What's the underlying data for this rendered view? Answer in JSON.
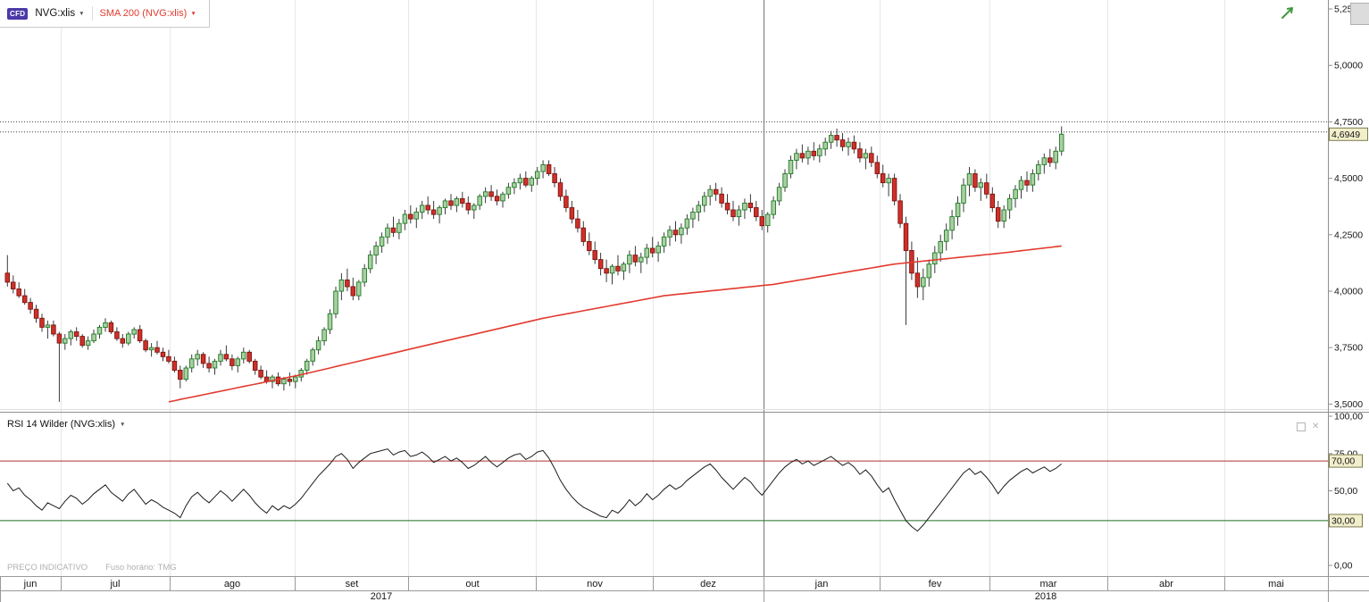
{
  "header": {
    "badge_label": "CFD",
    "symbol_label": "NVG:xlis",
    "sma_label": "SMA 200 (NVG:xlis)"
  },
  "icons": {
    "caret_down": "▼",
    "close": "✕"
  },
  "price_axis": {
    "tick_labels": [
      "5,2500",
      "5,0000",
      "4,7500",
      "4,5000",
      "4,2500",
      "4,0000",
      "3,7500",
      "3,5000"
    ],
    "tick_values": [
      5.25,
      5.0,
      4.75,
      4.5,
      4.25,
      4.0,
      3.75,
      3.5
    ],
    "last_price_label": "4,6949",
    "last_price": 4.6949,
    "level_lines": [
      4.75,
      4.705
    ]
  },
  "rsi_panel": {
    "title": "RSI 14 Wilder (NVG:xlis)",
    "tick_labels": [
      "100,00",
      "75,00",
      "50,00",
      "0,00"
    ],
    "tick_values": [
      100,
      75,
      50,
      0
    ],
    "overbought_label": "70,00",
    "oversold_label": "30,00",
    "overbought": 70,
    "oversold": 30
  },
  "footer": {
    "note": "PREÇO INDICATIVO",
    "timezone": "Fuso horário: TMG"
  },
  "colors": {
    "badge_bg": "#4a3aa8",
    "up_fill": "#a9cfa3",
    "up_stroke": "#1f7a24",
    "down_fill": "#cd312a",
    "down_stroke": "#7e130f",
    "sma": "#e23a2e",
    "rsi_line": "#1c1c1c",
    "overbought_line": "#b03030",
    "oversold_line": "#1d6b1d",
    "last_price_bg": "#f1eecb"
  },
  "chart_data": {
    "type": "candlestick",
    "months": [
      "jun",
      "jul",
      "ago",
      "set",
      "out",
      "nov",
      "dez",
      "jan",
      "fev",
      "mar",
      "abr",
      "mai"
    ],
    "years": [
      "2017",
      "2018"
    ],
    "price_range": [
      3.45,
      5.27
    ],
    "rsi_range": [
      0,
      100
    ],
    "ohlc": [
      [
        4.08,
        4.16,
        4.02,
        4.04
      ],
      [
        4.04,
        4.07,
        3.99,
        4.01
      ],
      [
        4.01,
        4.04,
        3.97,
        3.98
      ],
      [
        3.98,
        4.01,
        3.94,
        3.95
      ],
      [
        3.95,
        3.97,
        3.9,
        3.92
      ],
      [
        3.92,
        3.94,
        3.86,
        3.88
      ],
      [
        3.88,
        3.9,
        3.82,
        3.84
      ],
      [
        3.84,
        3.87,
        3.79,
        3.85
      ],
      [
        3.85,
        3.87,
        3.8,
        3.81
      ],
      [
        3.81,
        3.82,
        3.51,
        3.77
      ],
      [
        3.77,
        3.81,
        3.74,
        3.79
      ],
      [
        3.79,
        3.83,
        3.76,
        3.82
      ],
      [
        3.82,
        3.84,
        3.78,
        3.8
      ],
      [
        3.8,
        3.81,
        3.75,
        3.76
      ],
      [
        3.76,
        3.8,
        3.74,
        3.78
      ],
      [
        3.78,
        3.83,
        3.77,
        3.81
      ],
      [
        3.81,
        3.85,
        3.79,
        3.84
      ],
      [
        3.84,
        3.88,
        3.82,
        3.86
      ],
      [
        3.86,
        3.87,
        3.81,
        3.82
      ],
      [
        3.82,
        3.84,
        3.78,
        3.79
      ],
      [
        3.79,
        3.81,
        3.75,
        3.77
      ],
      [
        3.77,
        3.82,
        3.76,
        3.81
      ],
      [
        3.81,
        3.84,
        3.79,
        3.83
      ],
      [
        3.83,
        3.85,
        3.77,
        3.78
      ],
      [
        3.78,
        3.79,
        3.73,
        3.74
      ],
      [
        3.74,
        3.77,
        3.71,
        3.75
      ],
      [
        3.75,
        3.78,
        3.72,
        3.73
      ],
      [
        3.73,
        3.75,
        3.69,
        3.71
      ],
      [
        3.71,
        3.74,
        3.68,
        3.69
      ],
      [
        3.69,
        3.71,
        3.64,
        3.65
      ],
      [
        3.65,
        3.67,
        3.57,
        3.61
      ],
      [
        3.61,
        3.67,
        3.6,
        3.66
      ],
      [
        3.66,
        3.72,
        3.64,
        3.7
      ],
      [
        3.7,
        3.74,
        3.67,
        3.72
      ],
      [
        3.72,
        3.73,
        3.66,
        3.68
      ],
      [
        3.68,
        3.71,
        3.64,
        3.66
      ],
      [
        3.66,
        3.7,
        3.63,
        3.69
      ],
      [
        3.69,
        3.74,
        3.67,
        3.72
      ],
      [
        3.72,
        3.76,
        3.69,
        3.7
      ],
      [
        3.7,
        3.72,
        3.65,
        3.67
      ],
      [
        3.67,
        3.71,
        3.64,
        3.7
      ],
      [
        3.7,
        3.75,
        3.68,
        3.73
      ],
      [
        3.73,
        3.74,
        3.68,
        3.69
      ],
      [
        3.69,
        3.7,
        3.63,
        3.65
      ],
      [
        3.65,
        3.67,
        3.61,
        3.62
      ],
      [
        3.62,
        3.65,
        3.59,
        3.6
      ],
      [
        3.6,
        3.63,
        3.57,
        3.62
      ],
      [
        3.62,
        3.64,
        3.58,
        3.59
      ],
      [
        3.59,
        3.62,
        3.56,
        3.61
      ],
      [
        3.61,
        3.64,
        3.58,
        3.6
      ],
      [
        3.6,
        3.63,
        3.57,
        3.62
      ],
      [
        3.62,
        3.66,
        3.6,
        3.65
      ],
      [
        3.65,
        3.7,
        3.63,
        3.69
      ],
      [
        3.69,
        3.75,
        3.67,
        3.74
      ],
      [
        3.74,
        3.8,
        3.72,
        3.78
      ],
      [
        3.78,
        3.84,
        3.76,
        3.83
      ],
      [
        3.83,
        3.92,
        3.81,
        3.9
      ],
      [
        3.9,
        4.02,
        3.88,
        4.0
      ],
      [
        4.0,
        4.08,
        3.96,
        4.05
      ],
      [
        4.05,
        4.1,
        4.0,
        4.02
      ],
      [
        4.02,
        4.06,
        3.96,
        3.98
      ],
      [
        3.98,
        4.05,
        3.96,
        4.04
      ],
      [
        4.04,
        4.12,
        4.02,
        4.1
      ],
      [
        4.1,
        4.18,
        4.08,
        4.16
      ],
      [
        4.16,
        4.22,
        4.12,
        4.2
      ],
      [
        4.2,
        4.26,
        4.17,
        4.24
      ],
      [
        4.24,
        4.3,
        4.21,
        4.28
      ],
      [
        4.28,
        4.33,
        4.24,
        4.26
      ],
      [
        4.26,
        4.32,
        4.23,
        4.3
      ],
      [
        4.3,
        4.36,
        4.27,
        4.34
      ],
      [
        4.34,
        4.38,
        4.3,
        4.32
      ],
      [
        4.32,
        4.37,
        4.28,
        4.35
      ],
      [
        4.35,
        4.4,
        4.32,
        4.38
      ],
      [
        4.38,
        4.42,
        4.34,
        4.36
      ],
      [
        4.36,
        4.4,
        4.32,
        4.34
      ],
      [
        4.34,
        4.38,
        4.3,
        4.37
      ],
      [
        4.37,
        4.41,
        4.34,
        4.4
      ],
      [
        4.4,
        4.43,
        4.36,
        4.38
      ],
      [
        4.38,
        4.42,
        4.35,
        4.41
      ],
      [
        4.41,
        4.44,
        4.37,
        4.39
      ],
      [
        4.39,
        4.42,
        4.34,
        4.36
      ],
      [
        4.36,
        4.39,
        4.32,
        4.38
      ],
      [
        4.38,
        4.43,
        4.36,
        4.42
      ],
      [
        4.42,
        4.46,
        4.39,
        4.44
      ],
      [
        4.44,
        4.47,
        4.4,
        4.42
      ],
      [
        4.42,
        4.45,
        4.38,
        4.4
      ],
      [
        4.4,
        4.44,
        4.37,
        4.43
      ],
      [
        4.43,
        4.48,
        4.41,
        4.46
      ],
      [
        4.46,
        4.5,
        4.43,
        4.48
      ],
      [
        4.48,
        4.52,
        4.45,
        4.5
      ],
      [
        4.5,
        4.53,
        4.46,
        4.47
      ],
      [
        4.47,
        4.51,
        4.44,
        4.5
      ],
      [
        4.5,
        4.55,
        4.47,
        4.53
      ],
      [
        4.53,
        4.58,
        4.5,
        4.56
      ],
      [
        4.56,
        4.58,
        4.51,
        4.52
      ],
      [
        4.52,
        4.55,
        4.46,
        4.48
      ],
      [
        4.48,
        4.5,
        4.4,
        4.42
      ],
      [
        4.42,
        4.45,
        4.35,
        4.37
      ],
      [
        4.37,
        4.4,
        4.3,
        4.32
      ],
      [
        4.32,
        4.36,
        4.26,
        4.28
      ],
      [
        4.28,
        4.31,
        4.2,
        4.22
      ],
      [
        4.22,
        4.26,
        4.16,
        4.18
      ],
      [
        4.18,
        4.22,
        4.12,
        4.14
      ],
      [
        4.14,
        4.17,
        4.07,
        4.1
      ],
      [
        4.1,
        4.14,
        4.04,
        4.08
      ],
      [
        4.08,
        4.12,
        4.03,
        4.11
      ],
      [
        4.11,
        4.16,
        4.07,
        4.09
      ],
      [
        4.09,
        4.13,
        4.05,
        4.12
      ],
      [
        4.12,
        4.18,
        4.08,
        4.16
      ],
      [
        4.16,
        4.2,
        4.11,
        4.13
      ],
      [
        4.13,
        4.17,
        4.08,
        4.15
      ],
      [
        4.15,
        4.21,
        4.12,
        4.19
      ],
      [
        4.19,
        4.24,
        4.15,
        4.17
      ],
      [
        4.17,
        4.22,
        4.13,
        4.2
      ],
      [
        4.2,
        4.26,
        4.17,
        4.24
      ],
      [
        4.24,
        4.29,
        4.2,
        4.27
      ],
      [
        4.27,
        4.31,
        4.22,
        4.25
      ],
      [
        4.25,
        4.3,
        4.21,
        4.28
      ],
      [
        4.28,
        4.34,
        4.25,
        4.32
      ],
      [
        4.32,
        4.37,
        4.28,
        4.35
      ],
      [
        4.35,
        4.4,
        4.31,
        4.38
      ],
      [
        4.38,
        4.44,
        4.35,
        4.42
      ],
      [
        4.42,
        4.47,
        4.38,
        4.45
      ],
      [
        4.45,
        4.48,
        4.4,
        4.43
      ],
      [
        4.43,
        4.46,
        4.37,
        4.39
      ],
      [
        4.39,
        4.43,
        4.34,
        4.36
      ],
      [
        4.36,
        4.4,
        4.31,
        4.33
      ],
      [
        4.33,
        4.38,
        4.29,
        4.36
      ],
      [
        4.36,
        4.41,
        4.32,
        4.39
      ],
      [
        4.39,
        4.43,
        4.35,
        4.37
      ],
      [
        4.37,
        4.4,
        4.31,
        4.33
      ],
      [
        4.33,
        4.36,
        4.27,
        4.29
      ],
      [
        4.29,
        4.35,
        4.26,
        4.34
      ],
      [
        4.34,
        4.42,
        4.32,
        4.4
      ],
      [
        4.4,
        4.48,
        4.38,
        4.46
      ],
      [
        4.46,
        4.54,
        4.44,
        4.52
      ],
      [
        4.52,
        4.6,
        4.5,
        4.58
      ],
      [
        4.58,
        4.63,
        4.54,
        4.61
      ],
      [
        4.61,
        4.65,
        4.57,
        4.59
      ],
      [
        4.59,
        4.64,
        4.56,
        4.62
      ],
      [
        4.62,
        4.66,
        4.58,
        4.6
      ],
      [
        4.6,
        4.65,
        4.57,
        4.63
      ],
      [
        4.63,
        4.68,
        4.6,
        4.66
      ],
      [
        4.66,
        4.71,
        4.63,
        4.69
      ],
      [
        4.69,
        4.72,
        4.64,
        4.67
      ],
      [
        4.67,
        4.7,
        4.62,
        4.64
      ],
      [
        4.64,
        4.68,
        4.6,
        4.66
      ],
      [
        4.66,
        4.69,
        4.61,
        4.63
      ],
      [
        4.63,
        4.66,
        4.57,
        4.59
      ],
      [
        4.59,
        4.63,
        4.54,
        4.61
      ],
      [
        4.61,
        4.64,
        4.55,
        4.57
      ],
      [
        4.57,
        4.6,
        4.5,
        4.52
      ],
      [
        4.52,
        4.56,
        4.46,
        4.48
      ],
      [
        4.48,
        4.52,
        4.42,
        4.5
      ],
      [
        4.5,
        4.52,
        4.38,
        4.4
      ],
      [
        4.4,
        4.43,
        4.28,
        4.3
      ],
      [
        4.3,
        4.33,
        3.85,
        4.18
      ],
      [
        4.18,
        4.22,
        4.05,
        4.08
      ],
      [
        4.08,
        4.15,
        3.97,
        4.02
      ],
      [
        4.02,
        4.1,
        3.96,
        4.06
      ],
      [
        4.06,
        4.14,
        4.02,
        4.12
      ],
      [
        4.12,
        4.2,
        4.08,
        4.17
      ],
      [
        4.17,
        4.25,
        4.13,
        4.22
      ],
      [
        4.22,
        4.3,
        4.18,
        4.27
      ],
      [
        4.27,
        4.36,
        4.23,
        4.33
      ],
      [
        4.33,
        4.42,
        4.29,
        4.39
      ],
      [
        4.39,
        4.5,
        4.35,
        4.47
      ],
      [
        4.47,
        4.55,
        4.42,
        4.52
      ],
      [
        4.52,
        4.54,
        4.44,
        4.46
      ],
      [
        4.46,
        4.5,
        4.4,
        4.48
      ],
      [
        4.48,
        4.52,
        4.41,
        4.43
      ],
      [
        4.43,
        4.46,
        4.35,
        4.37
      ],
      [
        4.37,
        4.4,
        4.28,
        4.31
      ],
      [
        4.31,
        4.38,
        4.28,
        4.36
      ],
      [
        4.36,
        4.43,
        4.32,
        4.41
      ],
      [
        4.41,
        4.47,
        4.37,
        4.45
      ],
      [
        4.45,
        4.51,
        4.41,
        4.49
      ],
      [
        4.49,
        4.53,
        4.44,
        4.47
      ],
      [
        4.47,
        4.54,
        4.44,
        4.52
      ],
      [
        4.52,
        4.58,
        4.49,
        4.56
      ],
      [
        4.56,
        4.61,
        4.52,
        4.59
      ],
      [
        4.59,
        4.63,
        4.55,
        4.57
      ],
      [
        4.57,
        4.64,
        4.54,
        4.62
      ],
      [
        4.62,
        4.73,
        4.6,
        4.6949
      ]
    ],
    "sma200_points_by_index": [
      [
        28,
        3.51
      ],
      [
        51,
        3.63
      ],
      [
        71,
        3.75
      ],
      [
        93,
        3.88
      ],
      [
        114,
        3.98
      ],
      [
        133,
        4.03
      ],
      [
        154,
        4.12
      ],
      [
        173,
        4.17
      ],
      [
        183,
        4.2
      ]
    ],
    "rsi_values": [
      55,
      50,
      52,
      47,
      44,
      40,
      37,
      42,
      40,
      38,
      43,
      47,
      45,
      41,
      44,
      48,
      51,
      54,
      49,
      46,
      43,
      48,
      51,
      46,
      41,
      44,
      42,
      39,
      37,
      35,
      32,
      40,
      46,
      49,
      45,
      42,
      46,
      50,
      47,
      43,
      47,
      51,
      47,
      42,
      38,
      35,
      40,
      37,
      40,
      38,
      41,
      45,
      50,
      55,
      60,
      64,
      68,
      73,
      75,
      71,
      65,
      69,
      72,
      75,
      76,
      77,
      78,
      74,
      76,
      77,
      73,
      74,
      76,
      73,
      69,
      71,
      73,
      70,
      72,
      69,
      65,
      67,
      70,
      73,
      69,
      66,
      69,
      72,
      74,
      75,
      71,
      73,
      76,
      77,
      72,
      65,
      57,
      51,
      46,
      42,
      39,
      37,
      35,
      33,
      32,
      37,
      35,
      39,
      44,
      40,
      43,
      48,
      44,
      47,
      51,
      54,
      51,
      53,
      57,
      60,
      63,
      66,
      68,
      64,
      59,
      55,
      51,
      55,
      59,
      56,
      51,
      47,
      52,
      57,
      62,
      66,
      69,
      71,
      68,
      70,
      67,
      69,
      71,
      73,
      70,
      67,
      69,
      66,
      61,
      64,
      60,
      54,
      49,
      52,
      44,
      37,
      30,
      26,
      23,
      27,
      32,
      37,
      42,
      47,
      52,
      57,
      62,
      65,
      61,
      63,
      59,
      54,
      48,
      53,
      57,
      60,
      63,
      65,
      62,
      64,
      66,
      63,
      65,
      68
    ]
  }
}
